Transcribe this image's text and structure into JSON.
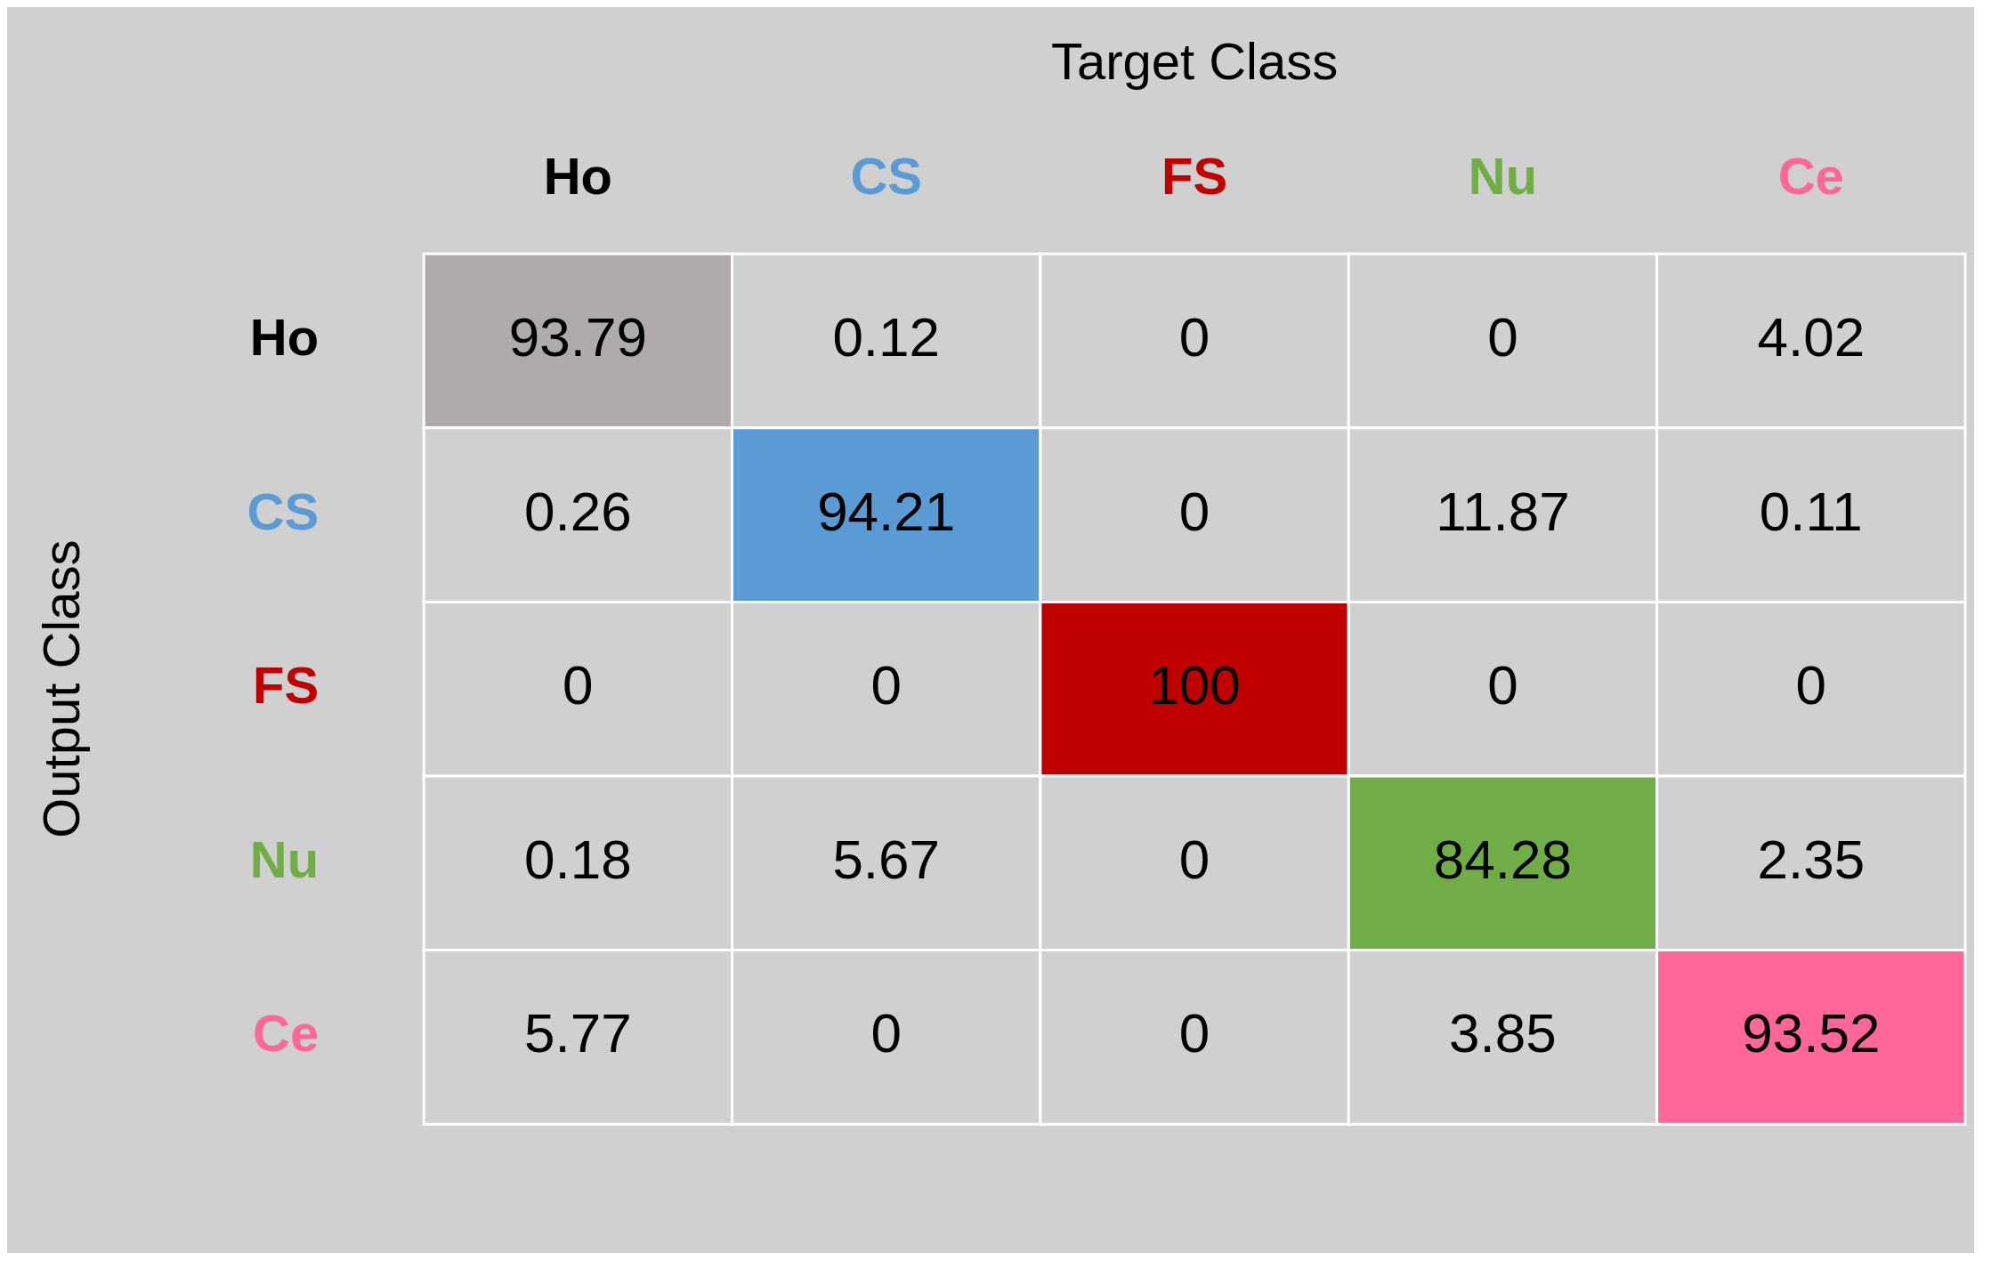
{
  "chart_data": {
    "type": "heatmap",
    "xlabel": "Target Class",
    "ylabel": "Output Class",
    "categories": [
      "Ho",
      "CS",
      "FS",
      "Nu",
      "Ce"
    ],
    "y_categories": [
      "Ho",
      "CS",
      "FS",
      "Nu",
      "Ce"
    ],
    "color": "#d0d0d0",
    "colors": [
      "#afabab",
      "#5b9bd5",
      "#c00000",
      "#70ad47",
      "#ff6699"
    ],
    "cells": [
      [
        93.79,
        0.12,
        0,
        0,
        4.02
      ],
      [
        0.26,
        94.21,
        0,
        11.87,
        0.11
      ],
      [
        0,
        0,
        100,
        0,
        0
      ],
      [
        0.18,
        5.67,
        0,
        84.28,
        2.35
      ],
      [
        5.77,
        0,
        0,
        3.85,
        93.52
      ]
    ],
    "data_labels": true
  }
}
